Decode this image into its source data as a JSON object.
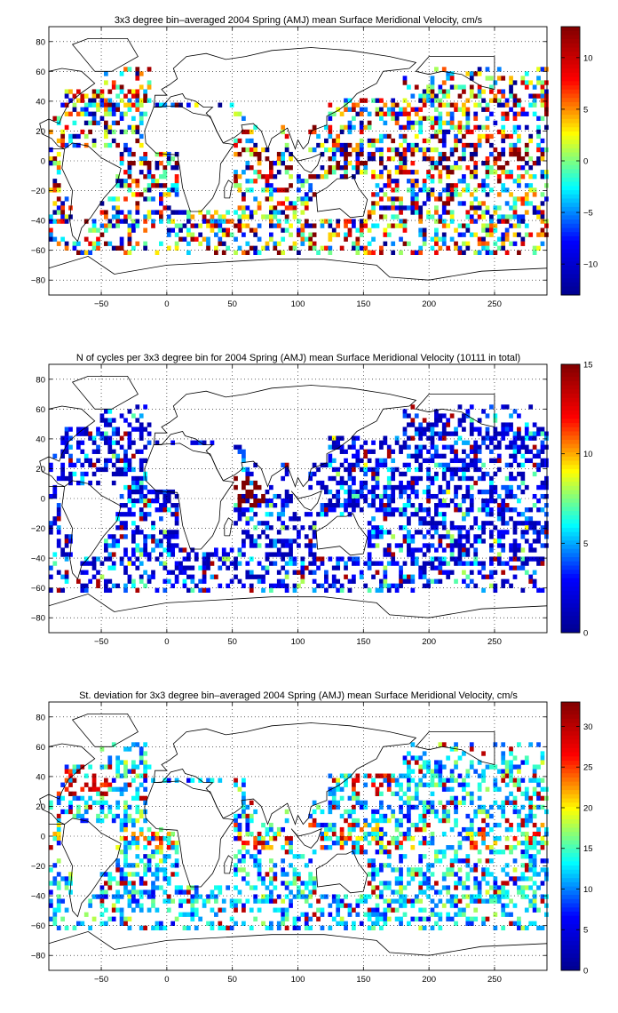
{
  "chart_data": [
    {
      "type": "heatmap",
      "title": "3x3 degree bin–averaged 2004 Spring (AMJ) mean Surface Meridional Velocity, cm/s",
      "xlabel": "",
      "ylabel": "",
      "xlim": [
        -90,
        290
      ],
      "ylim": [
        -90,
        90
      ],
      "grid": "dotted",
      "bin_size_deg": 3,
      "x_ticks": [
        "−50",
        "0",
        "50",
        "100",
        "150",
        "200",
        "250"
      ],
      "y_ticks": [
        "80",
        "60",
        "40",
        "20",
        "0",
        "−20",
        "−40",
        "−60",
        "−80"
      ],
      "colorbar": {
        "min": -13,
        "max": 13,
        "ticks": [
          "10",
          "5",
          "0",
          "−5",
          "−10"
        ],
        "tick_values": [
          10,
          5,
          0,
          -5,
          -10
        ]
      },
      "colormap": [
        "#00008f",
        "#0000ff",
        "#00ffff",
        "#ffff00",
        "#ff0000",
        "#800000"
      ]
    },
    {
      "type": "heatmap",
      "title": "N of cycles per 3x3 degree bin for 2004 Spring (AMJ) mean Surface Meridional Velocity (10111 in total)",
      "xlabel": "",
      "ylabel": "",
      "xlim": [
        -90,
        290
      ],
      "ylim": [
        -90,
        90
      ],
      "grid": "dotted",
      "bin_size_deg": 3,
      "total_cycles": 10111,
      "x_ticks": [
        "−50",
        "0",
        "50",
        "100",
        "150",
        "200",
        "250"
      ],
      "y_ticks": [
        "80",
        "60",
        "40",
        "20",
        "0",
        "−20",
        "−40",
        "−60",
        "−80"
      ],
      "colorbar": {
        "min": 0,
        "max": 15,
        "ticks": [
          "15",
          "10",
          "5",
          "0"
        ],
        "tick_values": [
          15,
          10,
          5,
          0
        ]
      },
      "colormap": [
        "#00008f",
        "#0000ff",
        "#00ffff",
        "#ffff00",
        "#ff0000",
        "#800000"
      ]
    },
    {
      "type": "heatmap",
      "title": "St. deviation for 3x3 degree bin–averaged 2004 Spring (AMJ) mean Surface Meridional Velocity, cm/s",
      "xlabel": "",
      "ylabel": "",
      "xlim": [
        -90,
        290
      ],
      "ylim": [
        -90,
        90
      ],
      "grid": "dotted",
      "bin_size_deg": 3,
      "x_ticks": [
        "−50",
        "0",
        "50",
        "100",
        "150",
        "200",
        "250"
      ],
      "y_ticks": [
        "80",
        "60",
        "40",
        "20",
        "0",
        "−20",
        "−40",
        "−60",
        "−80"
      ],
      "colorbar": {
        "min": 0,
        "max": 33,
        "ticks": [
          "30",
          "25",
          "20",
          "15",
          "10",
          "5",
          "0"
        ],
        "tick_values": [
          30,
          25,
          20,
          15,
          10,
          5,
          0
        ]
      },
      "colormap": [
        "#00008f",
        "#0000ff",
        "#00ffff",
        "#ffff00",
        "#ff0000",
        "#800000"
      ]
    }
  ]
}
